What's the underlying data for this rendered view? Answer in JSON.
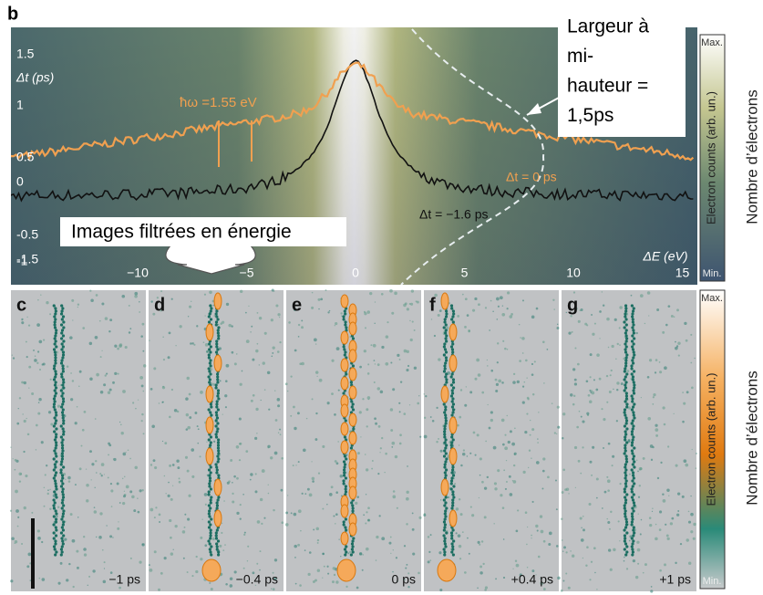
{
  "panel_b": {
    "label": "b",
    "y_axis_label": "Δt (ps)",
    "y_ticks": [
      "1.5",
      "1",
      "0.5",
      "0",
      "-0.5",
      "-1",
      "-1.5"
    ],
    "x_axis_label": "ΔE (eV)",
    "x_ticks": [
      "−10",
      "−5",
      "0",
      "5",
      "10",
      "15"
    ],
    "photon_energy_label": "ħω =1.55 eV",
    "curve_labels": [
      "Δt = 0 ps",
      "Δt = −1.6 ps"
    ],
    "colorbar": {
      "max": "Max.",
      "min": "Min.",
      "label": "Electron counts (arb. un.)"
    }
  },
  "annotation": {
    "lines": [
      "Largeur à",
      "mi-",
      "hauteur =",
      "1,5ps"
    ]
  },
  "callout": "Images filtrées en énergie",
  "side_labels": [
    "Nombre d’électrons",
    "Nombre d’électrons"
  ],
  "panels": [
    {
      "label": "c",
      "time": "−1 ps"
    },
    {
      "label": "d",
      "time": "−0.4 ps"
    },
    {
      "label": "e",
      "time": "0 ps"
    },
    {
      "label": "f",
      "time": "+0.4 ps"
    },
    {
      "label": "g",
      "time": "+1 ps"
    }
  ],
  "colorbar_2": {
    "max": "Max.",
    "min": "Min.",
    "label": "Electron counts (arb. un.)"
  }
}
